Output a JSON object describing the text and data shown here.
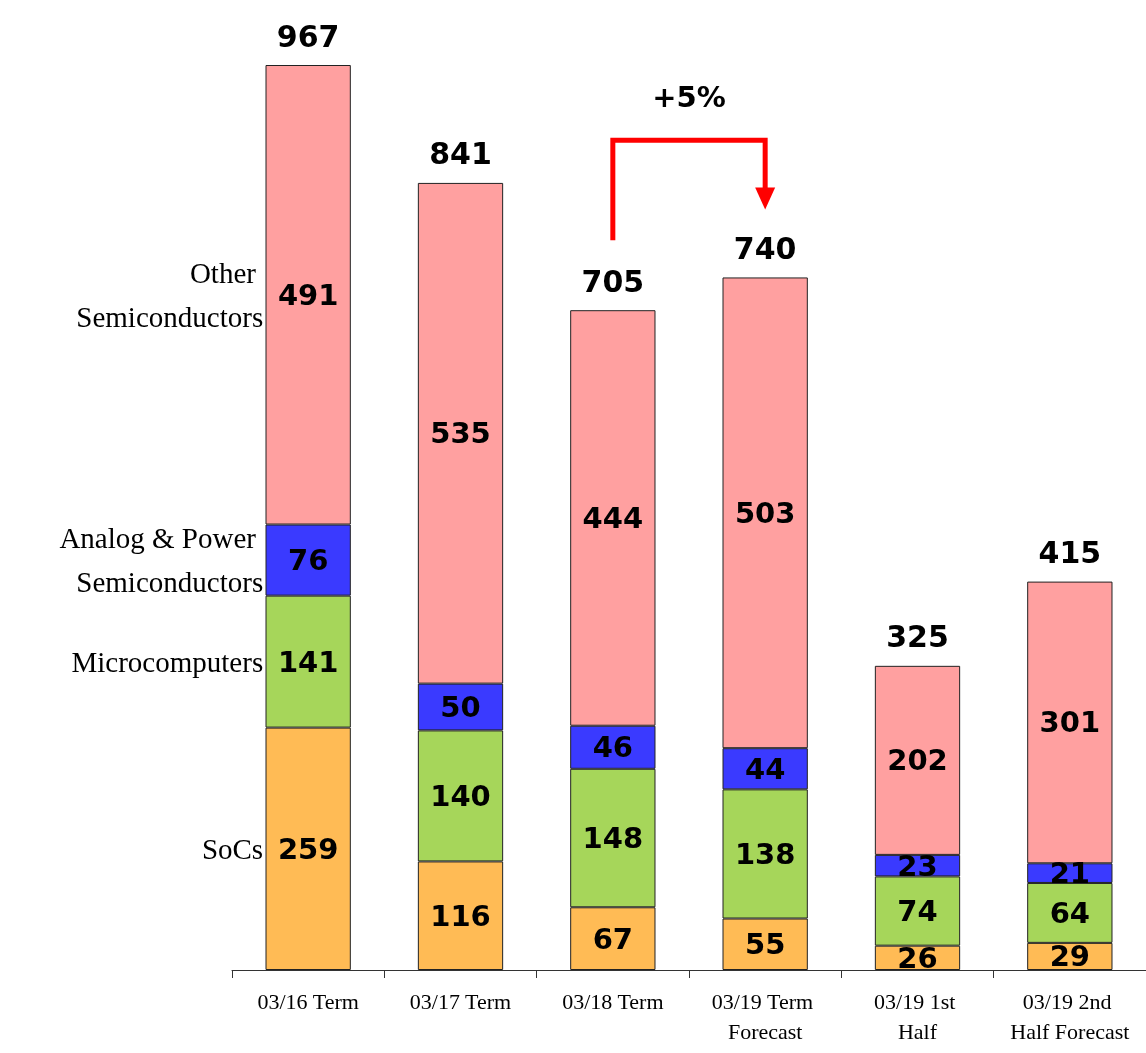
{
  "chart_data": {
    "type": "bar",
    "stacked": true,
    "categories": [
      "03/16 Term",
      "03/17 Term",
      "03/18 Term",
      "03/19 Term Forecast",
      "03/19 1st Half",
      "03/19 2nd Half Forecast"
    ],
    "series": [
      {
        "name": "SoCs",
        "color": "#ffbb55",
        "values": [
          259,
          116,
          67,
          55,
          26,
          29
        ]
      },
      {
        "name": "Microcomputers",
        "color": "#a6d65a",
        "values": [
          141,
          140,
          148,
          138,
          74,
          64
        ]
      },
      {
        "name": "Analog & Power Semiconductors",
        "color": "#3a3aff",
        "values": [
          76,
          50,
          46,
          44,
          23,
          21
        ]
      },
      {
        "name": "Other Semiconductors",
        "color": "#ffa0a0",
        "values": [
          491,
          535,
          444,
          503,
          202,
          301
        ]
      }
    ],
    "totals": [
      "967",
      "841",
      "705",
      "740",
      "325",
      "415"
    ],
    "data_labels": true,
    "tick_labels": "x",
    "legend": false,
    "annotations": [
      "+5%"
    ]
  }
}
